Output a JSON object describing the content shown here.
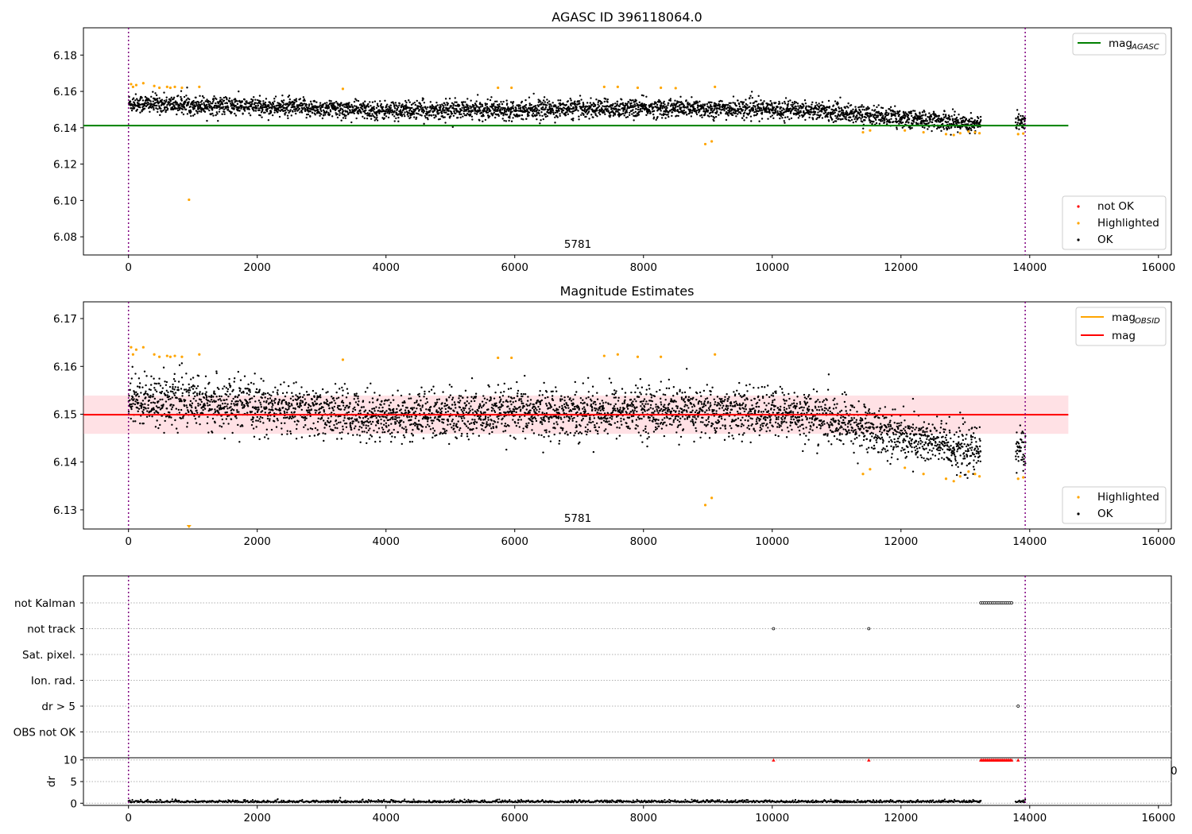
{
  "chart_data": [
    {
      "type": "scatter",
      "title": "AGASC ID 396118064.0",
      "xlim": [
        -700,
        16200
      ],
      "ylim": [
        6.07,
        6.195
      ],
      "xticks": [
        0,
        2000,
        4000,
        6000,
        8000,
        10000,
        12000,
        14000,
        16000
      ],
      "yticks": [
        6.08,
        6.1,
        6.12,
        6.14,
        6.16,
        6.18
      ],
      "ytick_decimals": 2,
      "annotation": {
        "text": "5781",
        "x": 6800
      },
      "vlines": [
        0,
        13930
      ],
      "hlines": [
        {
          "name": "mag_AGASC",
          "y": 6.1412,
          "x0": -700,
          "x1": 14600,
          "color": "#008000"
        }
      ],
      "series": [
        {
          "name": "not OK",
          "color": "#ff0000",
          "x": [],
          "y": []
        },
        {
          "name": "Highlighted",
          "color": "#ffa500",
          "x": [
            40,
            70,
            120,
            230,
            400,
            480,
            600,
            650,
            720,
            830,
            940,
            1100,
            3330,
            5740,
            5950,
            7390,
            7600,
            7910,
            8270,
            8500,
            9110,
            8960,
            9060,
            11410,
            11520,
            12060,
            12350,
            12700,
            12820,
            12920,
            13050,
            13150,
            13220,
            13820,
            13900
          ],
          "y": [
            6.164,
            6.1625,
            6.1635,
            6.1645,
            6.163,
            6.162,
            6.1625,
            6.162,
            6.1625,
            6.162,
            6.1004,
            6.1625,
            6.1614,
            6.162,
            6.162,
            6.1625,
            6.1625,
            6.162,
            6.162,
            6.1618,
            6.1625,
            6.131,
            6.1325,
            6.1375,
            6.1385,
            6.1385,
            6.1375,
            6.1365,
            6.136,
            6.137,
            6.138,
            6.1375,
            6.137,
            6.1365,
            6.1368
          ]
        },
        {
          "name": "OK",
          "color": "#000000",
          "trend": {
            "x": [
              0,
              1000,
              4000,
              8000,
              10500,
              11500,
              12500,
              13240,
              13800,
              13920
            ],
            "y": [
              6.1535,
              6.1525,
              6.1495,
              6.1508,
              6.15,
              6.147,
              6.144,
              6.142,
              6.143,
              6.1425
            ]
          },
          "spread": 0.0055,
          "segments": [
            [
              0,
              13240
            ],
            [
              13780,
              13930
            ]
          ]
        }
      ],
      "legends": [
        {
          "position": "top-right",
          "entries": [
            {
              "label": "mag",
              "sub": "AGASC",
              "color": "#008000",
              "kind": "line"
            }
          ]
        },
        {
          "position": "bottom-right",
          "entries": [
            {
              "label": "not OK",
              "color": "#ff0000",
              "kind": "dot"
            },
            {
              "label": "Highlighted",
              "color": "#ffa500",
              "kind": "dot"
            },
            {
              "label": "OK",
              "color": "#000000",
              "kind": "dot"
            }
          ]
        }
      ]
    },
    {
      "type": "scatter",
      "title": "Magnitude Estimates",
      "xlim": [
        -700,
        16200
      ],
      "ylim": [
        6.126,
        6.1735
      ],
      "xticks": [
        0,
        2000,
        4000,
        6000,
        8000,
        10000,
        12000,
        14000,
        16000
      ],
      "yticks": [
        6.13,
        6.14,
        6.15,
        6.16,
        6.17
      ],
      "ytick_decimals": 2,
      "annotation": {
        "text": "5781",
        "x": 6800
      },
      "vlines": [
        0,
        13930
      ],
      "band": {
        "y0": 6.1459,
        "y1": 6.1539,
        "x0": -700,
        "x1": 14600
      },
      "hlines": [
        {
          "name": "mag",
          "y": 6.1499,
          "x0": -700,
          "x1": 14600,
          "color": "#ff0000"
        }
      ],
      "series": [
        {
          "name": "Highlighted",
          "color": "#ffa500",
          "x": [
            40,
            70,
            120,
            230,
            400,
            480,
            600,
            650,
            720,
            830,
            1100,
            3330,
            5740,
            5950,
            7390,
            7600,
            7910,
            8270,
            9110,
            8960,
            9060,
            11410,
            11520,
            12060,
            12350,
            12700,
            12820,
            12920,
            13050,
            13150,
            13220,
            13820,
            13900
          ],
          "y": [
            6.164,
            6.1625,
            6.1635,
            6.164,
            6.1625,
            6.162,
            6.1622,
            6.162,
            6.1622,
            6.162,
            6.1625,
            6.1614,
            6.1618,
            6.1618,
            6.1622,
            6.1625,
            6.162,
            6.162,
            6.1625,
            6.131,
            6.1325,
            6.1375,
            6.1385,
            6.1388,
            6.1375,
            6.1365,
            6.136,
            6.137,
            6.138,
            6.1375,
            6.137,
            6.1365,
            6.1368
          ]
        },
        {
          "name": "OK",
          "color": "#000000",
          "trend": {
            "x": [
              0,
              1000,
              4000,
              8000,
              10500,
              11500,
              12500,
              13240,
              13800,
              13920
            ],
            "y": [
              6.1535,
              6.1525,
              6.1495,
              6.1508,
              6.15,
              6.147,
              6.144,
              6.142,
              6.143,
              6.1425
            ]
          },
          "spread": 0.0055,
          "segments": [
            [
              0,
              13240
            ],
            [
              13780,
              13930
            ]
          ]
        }
      ],
      "legends": [
        {
          "position": "top-right",
          "entries": [
            {
              "label": "mag",
              "sub": "OBSID",
              "color": "#ffa500",
              "kind": "line"
            },
            {
              "label": "mag",
              "sub": "",
              "color": "#ff0000",
              "kind": "line"
            }
          ]
        },
        {
          "position": "bottom-right",
          "entries": [
            {
              "label": "Highlighted",
              "color": "#ffa500",
              "kind": "dot"
            },
            {
              "label": "OK",
              "color": "#000000",
              "kind": "dot"
            }
          ]
        }
      ]
    },
    {
      "type": "scatter",
      "title": "",
      "categories": [
        "not Kalman",
        "not track",
        "Sat. pixel.",
        "Ion. rad.",
        "dr > 5",
        "OBS not OK"
      ],
      "flag_points": [
        {
          "category": "not Kalman",
          "x0": 13240,
          "x1": 13720
        },
        {
          "category": "not track",
          "x": [
            10020,
            11500
          ]
        },
        {
          "category": "dr > 5",
          "x": [
            13820
          ]
        }
      ],
      "vlines": [
        0,
        13930
      ]
    },
    {
      "type": "scatter",
      "title": "",
      "ylabel": "dr",
      "xlim": [
        -700,
        16200
      ],
      "ylim": [
        -0.5,
        10.5
      ],
      "xticks": [
        0,
        2000,
        4000,
        6000,
        8000,
        10000,
        12000,
        14000,
        16000
      ],
      "yticks": [
        0,
        5,
        10
      ],
      "ytick_decimals": 0,
      "edge_label": "0",
      "vlines": [
        0,
        13930
      ],
      "capped_points": {
        "color": "#ff0000",
        "y": 10,
        "x": [
          10020,
          11500
        ],
        "x0": 13240,
        "x1": 13720,
        "x_extra": [
          13820
        ]
      },
      "series": [
        {
          "name": "",
          "color": "#000000",
          "baseline": 0.2,
          "spread": 0.25,
          "segments": [
            [
              0,
              13240
            ],
            [
              13780,
              13930
            ]
          ]
        }
      ]
    }
  ]
}
